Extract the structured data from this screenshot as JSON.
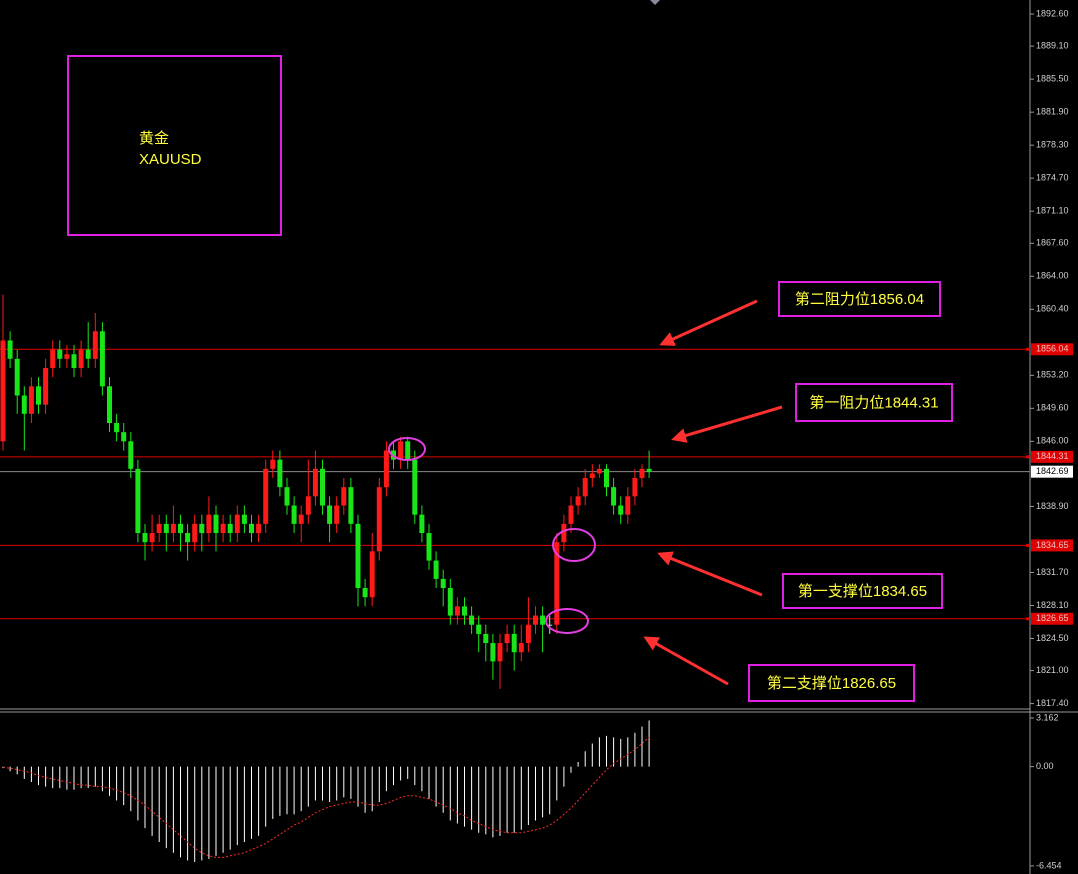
{
  "chart_data": [
    {
      "type": "candlestick",
      "title": "黄金",
      "symbol": "XAUUSD",
      "open": [
        1846,
        1857,
        1855,
        1851,
        1849,
        1852,
        1850,
        1854,
        1856,
        1855,
        1855.5,
        1854,
        1856,
        1855,
        1858,
        1852,
        1848,
        1847,
        1846,
        1843,
        1836,
        1835,
        1836,
        1837,
        1836,
        1837,
        1836,
        1835,
        1837,
        1836,
        1838,
        1836,
        1837,
        1836,
        1838,
        1837,
        1836,
        1837,
        1843,
        1844,
        1841,
        1839,
        1837,
        1838,
        1840,
        1843,
        1839,
        1837,
        1839,
        1841,
        1837,
        1830,
        1829,
        1834,
        1841,
        1845,
        1844,
        1846,
        1844,
        1838,
        1836,
        1833,
        1831,
        1830,
        1827,
        1828,
        1827,
        1826,
        1825,
        1824,
        1822,
        1824,
        1825,
        1823,
        1824,
        1826,
        1827,
        1826,
        1826,
        1835,
        1837,
        1839,
        1840,
        1842,
        1842.5,
        1843,
        1841,
        1839,
        1838,
        1840,
        1842,
        1843
      ],
      "high": [
        1862,
        1858,
        1856,
        1852,
        1853,
        1853,
        1855,
        1857,
        1857,
        1856.5,
        1856.5,
        1857,
        1859,
        1860,
        1859,
        1853,
        1849,
        1848,
        1847,
        1844,
        1837,
        1838,
        1838,
        1838,
        1839,
        1838,
        1837,
        1838,
        1838,
        1840,
        1839,
        1838,
        1838,
        1839,
        1839,
        1838,
        1838,
        1844,
        1845,
        1845,
        1842,
        1840,
        1839,
        1844,
        1845,
        1844,
        1840,
        1840,
        1842,
        1842,
        1838,
        1831,
        1836,
        1842,
        1846,
        1846,
        1846.5,
        1846.5,
        1845,
        1839,
        1837,
        1834,
        1832,
        1831,
        1829,
        1829,
        1828,
        1827,
        1826,
        1825,
        1825,
        1826,
        1826,
        1826,
        1829,
        1828,
        1828,
        1827,
        1836,
        1838,
        1840,
        1841,
        1843,
        1843.5,
        1843.5,
        1843.5,
        1842,
        1840,
        1841,
        1843,
        1843.5,
        1845
      ],
      "low": [
        1845,
        1854,
        1849,
        1845,
        1848,
        1849,
        1849,
        1853,
        1854,
        1854,
        1853,
        1853,
        1854,
        1854,
        1851,
        1847,
        1846,
        1845,
        1842,
        1835,
        1833,
        1834,
        1835,
        1834,
        1835,
        1834,
        1833,
        1834,
        1834,
        1835,
        1834,
        1835,
        1835,
        1835,
        1836,
        1835,
        1835,
        1836,
        1842,
        1840,
        1838,
        1836,
        1835,
        1837,
        1839,
        1838,
        1835,
        1836,
        1838,
        1836,
        1828,
        1828,
        1828,
        1833,
        1840,
        1843,
        1843,
        1843,
        1837,
        1835,
        1832,
        1830,
        1828,
        1826,
        1826,
        1826,
        1825,
        1823,
        1822,
        1820,
        1819,
        1823,
        1821,
        1822,
        1823,
        1825,
        1823,
        1825,
        1825,
        1834,
        1836,
        1838,
        1839,
        1841,
        1842,
        1840,
        1838,
        1837,
        1837,
        1839,
        1841,
        1842
      ],
      "close": [
        1857,
        1855,
        1851,
        1849,
        1852,
        1850,
        1854,
        1856,
        1855,
        1855.5,
        1854,
        1856,
        1855,
        1858,
        1852,
        1848,
        1847,
        1846,
        1843,
        1836,
        1835,
        1836,
        1837,
        1836,
        1837,
        1836,
        1835,
        1837,
        1836,
        1838,
        1836,
        1837,
        1836,
        1838,
        1837,
        1836,
        1837,
        1843,
        1844,
        1841,
        1839,
        1837,
        1838,
        1840,
        1843,
        1839,
        1837,
        1839,
        1841,
        1837,
        1830,
        1829,
        1834,
        1841,
        1845,
        1844,
        1846,
        1844,
        1838,
        1836,
        1833,
        1831,
        1830,
        1827,
        1828,
        1827,
        1826,
        1825,
        1824,
        1822,
        1824,
        1825,
        1823,
        1824,
        1826,
        1827,
        1826,
        1826,
        1835,
        1837,
        1839,
        1840,
        1842,
        1842.5,
        1843,
        1841,
        1839,
        1838,
        1840,
        1842,
        1843,
        1842.69
      ],
      "up_color": "#ff1a1a",
      "down_color": "#19e619",
      "ylim": [
        1816.7,
        1894.13
      ],
      "yticks": [
        {
          "value": 1892.6,
          "label": "1892.60"
        },
        {
          "value": 1889.1,
          "label": "1889.10"
        },
        {
          "value": 1885.5,
          "label": "1885.50"
        },
        {
          "value": 1881.9,
          "label": "1881.90"
        },
        {
          "value": 1878.3,
          "label": "1878.30"
        },
        {
          "value": 1874.7,
          "label": "1874.70"
        },
        {
          "value": 1871.1,
          "label": "1871.10"
        },
        {
          "value": 1867.6,
          "label": "1867.60"
        },
        {
          "value": 1864,
          "label": "1864.00"
        },
        {
          "value": 1860.4,
          "label": "1860.40"
        },
        {
          "value": 1853.2,
          "label": "1853.20"
        },
        {
          "value": 1849.6,
          "label": "1849.60"
        },
        {
          "value": 1846,
          "label": "1846.00"
        },
        {
          "value": 1838.9,
          "label": "1838.90"
        },
        {
          "value": 1831.7,
          "label": "1831.70"
        },
        {
          "value": 1828.1,
          "label": "1828.10"
        },
        {
          "value": 1824.5,
          "label": "1824.50"
        },
        {
          "value": 1821,
          "label": "1821.00"
        },
        {
          "value": 1817.4,
          "label": "1817.40"
        }
      ],
      "levels": [
        1856.04,
        1844.31,
        1834.65,
        1826.65
      ],
      "level_color": "#e00000",
      "last_price": 1842.69,
      "annotations": [
        "第二阻力位1856.04",
        "第一阻力位1844.31",
        "第一支撑位1834.65",
        "第二支撑位1826.65"
      ]
    },
    {
      "type": "macd",
      "series": [
        {
          "color": "#ffffff",
          "values": [
            -0.1,
            -0.3,
            -0.5,
            -0.8,
            -1.0,
            -1.2,
            -1.3,
            -1.4,
            -1.4,
            -1.5,
            -1.5,
            -1.4,
            -1.4,
            -1.3,
            -1.6,
            -1.9,
            -2.2,
            -2.5,
            -2.9,
            -3.5,
            -4.0,
            -4.5,
            -4.9,
            -5.3,
            -5.6,
            -5.9,
            -6.1,
            -6.2,
            -6.1,
            -6.0,
            -5.8,
            -5.6,
            -5.4,
            -5.1,
            -4.9,
            -4.7,
            -4.5,
            -3.9,
            -3.4,
            -3.2,
            -3.1,
            -3.1,
            -2.9,
            -2.6,
            -2.2,
            -2.2,
            -2.3,
            -2.2,
            -2.0,
            -2.1,
            -2.6,
            -3.0,
            -2.9,
            -2.3,
            -1.6,
            -1.2,
            -0.9,
            -0.8,
            -1.2,
            -1.6,
            -2.1,
            -2.6,
            -3.0,
            -3.5,
            -3.7,
            -3.9,
            -4.1,
            -4.3,
            -4.4,
            -4.6,
            -4.5,
            -4.3,
            -4.3,
            -4.1,
            -3.8,
            -3.5,
            -3.3,
            -3.1,
            -2.2,
            -1.3,
            -0.4,
            0.3,
            1.0,
            1.5,
            1.9,
            2.0,
            1.9,
            1.8,
            1.9,
            2.2,
            2.6,
            3.0
          ]
        },
        {
          "color": "#ff2a2a",
          "values": [
            -0.05,
            -0.1,
            -0.2,
            -0.3,
            -0.4,
            -0.6,
            -0.7,
            -0.8,
            -0.9,
            -1.0,
            -1.1,
            -1.2,
            -1.2,
            -1.3,
            -1.3,
            -1.4,
            -1.5,
            -1.7,
            -1.9,
            -2.2,
            -2.5,
            -2.9,
            -3.3,
            -3.7,
            -4.1,
            -4.5,
            -4.9,
            -5.3,
            -5.6,
            -5.8,
            -5.9,
            -5.9,
            -5.8,
            -5.7,
            -5.6,
            -5.4,
            -5.2,
            -5.0,
            -4.7,
            -4.4,
            -4.1,
            -3.8,
            -3.6,
            -3.3,
            -3.0,
            -2.8,
            -2.6,
            -2.5,
            -2.4,
            -2.3,
            -2.3,
            -2.4,
            -2.5,
            -2.5,
            -2.4,
            -2.2,
            -2.0,
            -1.9,
            -1.9,
            -2.0,
            -2.1,
            -2.3,
            -2.5,
            -2.7,
            -3.0,
            -3.2,
            -3.5,
            -3.7,
            -3.9,
            -4.1,
            -4.2,
            -4.3,
            -4.3,
            -4.3,
            -4.2,
            -4.1,
            -4.0,
            -3.8,
            -3.5,
            -3.1,
            -2.7,
            -2.2,
            -1.7,
            -1.2,
            -0.7,
            -0.2,
            0.2,
            0.5,
            0.8,
            1.1,
            1.5,
            1.9
          ]
        }
      ],
      "ylim": [
        -6.85,
        3.55
      ],
      "yticks": [
        3.162,
        {
          "value": 0,
          "label": "0.00"
        },
        -6.454
      ]
    }
  ]
}
